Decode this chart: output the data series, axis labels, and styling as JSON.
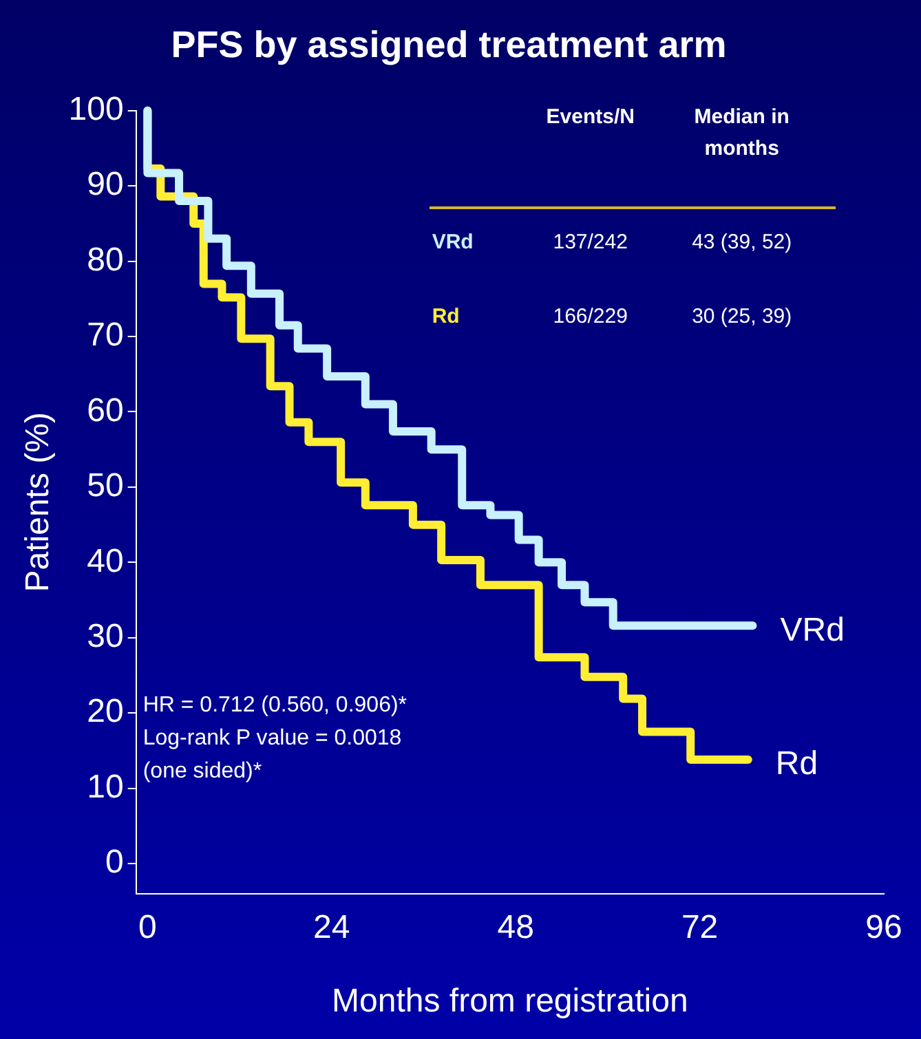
{
  "chart_data": {
    "type": "step",
    "title": "PFS by assigned treatment arm",
    "xlabel": "Months from registration",
    "ylabel": "Patients (%)",
    "xlim": [
      -1.5,
      96
    ],
    "xticks": [
      0,
      24,
      48,
      72,
      96
    ],
    "ylim": [
      -4,
      100
    ],
    "yticks": [
      0,
      10,
      20,
      30,
      40,
      50,
      60,
      70,
      80,
      90,
      100
    ],
    "grid": false,
    "legend": false,
    "annotations": [
      "Events/N",
      "Median in months",
      "137/242",
      "43 (39, 52)",
      "166/229",
      "30 (25, 39)",
      "HR = 0.712 (0.560, 0.906)*",
      "Log-rank P value = 0.0018",
      "(one sided)*"
    ],
    "series": [
      {
        "name": "VRd",
        "color": "#c8f0ff",
        "x": [
          0,
          4.1,
          7.9,
          10.3,
          13.5,
          17.2,
          19.6,
          23.4,
          28.4,
          32,
          37,
          41,
          44.7,
          48.4,
          51,
          54,
          57,
          60.7,
          70.8,
          78.9
        ],
        "values": [
          100,
          91.7,
          88,
          83,
          79.4,
          75.7,
          71.5,
          68.4,
          64.7,
          61,
          57.4,
          55,
          47.6,
          46.3,
          43,
          40,
          37,
          34.7,
          31.6,
          31.6
        ]
      },
      {
        "name": "Rd",
        "color": "#ffee33",
        "x": [
          0,
          1.7,
          6,
          7.3,
          9.7,
          12.2,
          16,
          18.5,
          21,
          25.2,
          28.4,
          34.6,
          38.3,
          43.4,
          51,
          57,
          62,
          64.5,
          70.8,
          75.7,
          78.3
        ],
        "values": [
          100,
          92.3,
          88.6,
          85,
          77,
          75.2,
          69.7,
          63.4,
          58.6,
          56,
          50.6,
          47.6,
          45,
          40.3,
          37,
          27.4,
          24.8,
          21.9,
          17.5,
          13.8,
          13.8
        ]
      }
    ]
  }
}
